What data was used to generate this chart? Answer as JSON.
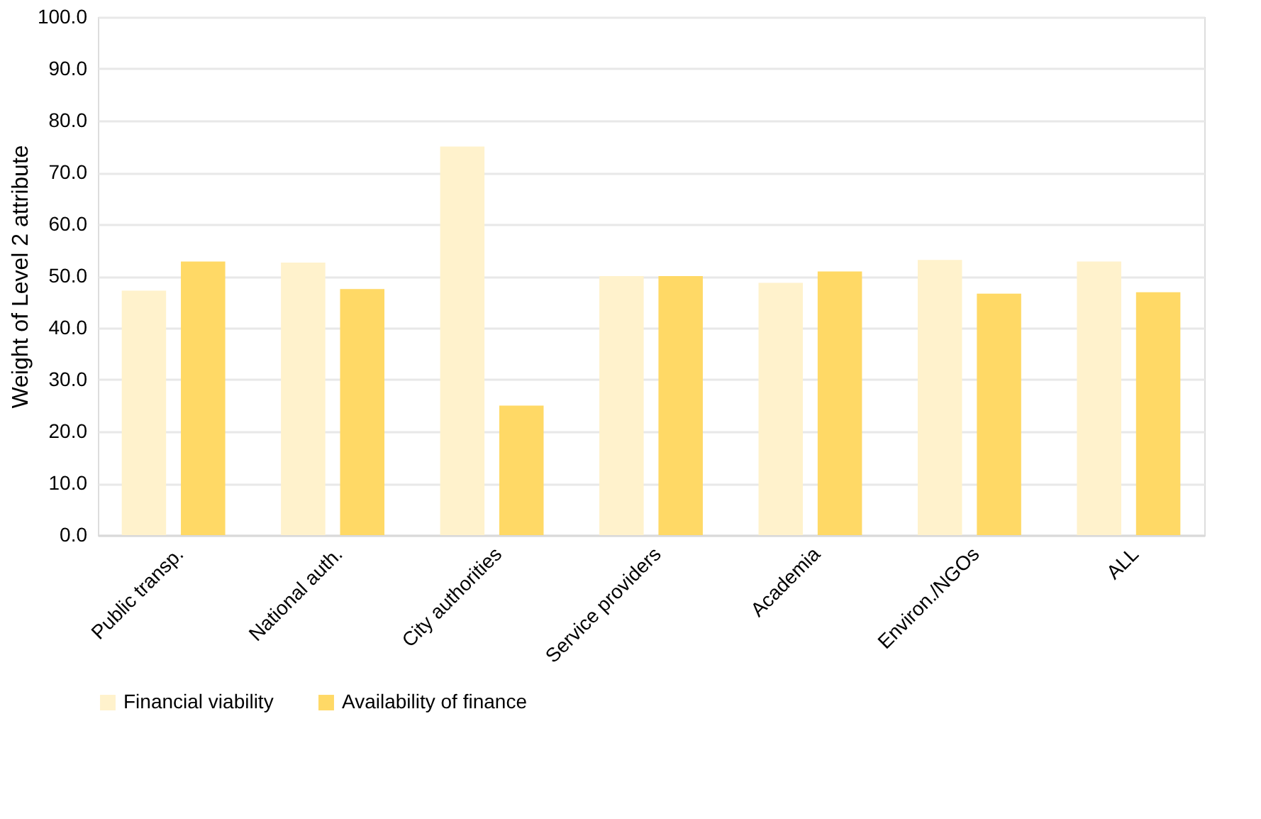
{
  "chart_data": {
    "type": "bar",
    "ylabel": "Weight of Level 2 attribute",
    "categories": [
      "Public transp.",
      "National auth.",
      "City authorities",
      "Service providers",
      "Academia",
      "Environ./NGOs",
      "ALL"
    ],
    "series": [
      {
        "name": "Financial viability",
        "color": "#fff2cc",
        "values": [
          47.2,
          52.6,
          75.0,
          50.0,
          48.7,
          53.1,
          52.8
        ]
      },
      {
        "name": "Availability of finance",
        "color": "#ffd966",
        "values": [
          52.8,
          47.5,
          25.0,
          50.0,
          50.9,
          46.6,
          46.9
        ]
      }
    ],
    "ylim": [
      0,
      100
    ],
    "yticks": [
      {
        "value": 0,
        "label": "0.0"
      },
      {
        "value": 10,
        "label": "10.0"
      },
      {
        "value": 20,
        "label": "20.0"
      },
      {
        "value": 30,
        "label": "30.0"
      },
      {
        "value": 40,
        "label": "40.0"
      },
      {
        "value": 50,
        "label": "50.0"
      },
      {
        "value": 60,
        "label": "60.0"
      },
      {
        "value": 70,
        "label": "70.0"
      },
      {
        "value": 80,
        "label": "80.0"
      },
      {
        "value": 90,
        "label": "90.0"
      },
      {
        "value": 100,
        "label": "100.0"
      }
    ],
    "grid": "y",
    "legend": "bottom"
  }
}
